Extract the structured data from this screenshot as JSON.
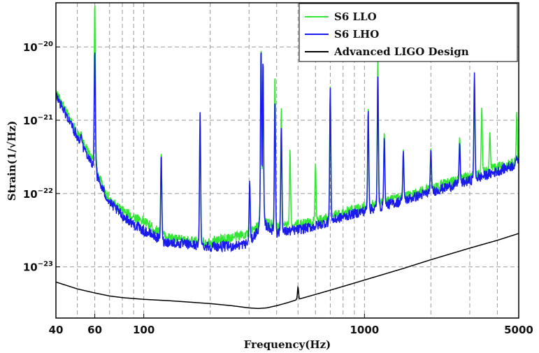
{
  "chart_data": {
    "type": "line",
    "x_scale": "log",
    "y_scale": "log",
    "xlim": [
      40,
      5000
    ],
    "ylim": [
      2e-24,
      4e-20
    ],
    "xlabel": "Frequency(Hz)",
    "ylabel": "Strain(1/√Hz)",
    "x_ticks": [
      40,
      60,
      100,
      1000,
      5000
    ],
    "x_tick_labels": [
      "40",
      "60",
      "100",
      "1000",
      "5000"
    ],
    "y_ticks": [
      1e-23,
      1e-22,
      1e-21,
      1e-20
    ],
    "y_tick_labels": [
      "10",
      "10",
      "10",
      "10"
    ],
    "y_tick_exponents": [
      "−23",
      "−22",
      "−21",
      "−20"
    ],
    "grid": true,
    "legend_position": "top-right",
    "colors": {
      "llo": "#33e633",
      "lho": "#1a1aee",
      "design": "#000000"
    },
    "series": [
      {
        "name": "S6 LLO",
        "color": "#33e633",
        "x": [
          40,
          45,
          50,
          55,
          58,
          60,
          62,
          65,
          70,
          80,
          90,
          100,
          110,
          120,
          130,
          150,
          180,
          200,
          250,
          300,
          330,
          345,
          360,
          400,
          500,
          600,
          700,
          800,
          1000,
          1500,
          2000,
          3000,
          4000,
          5000
        ],
        "y": [
          2.4e-21,
          1.2e-21,
          6.5e-22,
          4e-22,
          3e-22,
          2.6e-22,
          1.8e-22,
          1.3e-22,
          8e-23,
          5.8e-23,
          4.8e-23,
          4.2e-23,
          3.4e-23,
          2.8e-23,
          2.5e-23,
          2.3e-23,
          2.15e-23,
          2.2e-23,
          2.5e-23,
          2.9e-23,
          3.6e-23,
          5e-23,
          4e-23,
          3.5e-23,
          3.8e-23,
          4.2e-23,
          4.8e-23,
          5.5e-23,
          6.8e-23,
          9e-23,
          1.2e-22,
          1.7e-22,
          2.3e-22,
          2.7e-22
        ],
        "peaks": [
          {
            "f": 46,
            "a": 9e-22
          },
          {
            "f": 52,
            "a": 7e-22
          },
          {
            "f": 60,
            "a": 4.4e-20
          },
          {
            "f": 120,
            "a": 3.8e-22
          },
          {
            "f": 180,
            "a": 1.2e-21
          },
          {
            "f": 302,
            "a": 1.4e-22
          },
          {
            "f": 340,
            "a": 1.1e-20
          },
          {
            "f": 347,
            "a": 4e-21
          },
          {
            "f": 393,
            "a": 4.5e-21
          },
          {
            "f": 420,
            "a": 1.5e-21
          },
          {
            "f": 460,
            "a": 4e-22
          },
          {
            "f": 600,
            "a": 2.6e-22
          },
          {
            "f": 700,
            "a": 2.9e-21
          },
          {
            "f": 1040,
            "a": 1.5e-21
          },
          {
            "f": 1150,
            "a": 8.5e-21
          },
          {
            "f": 1230,
            "a": 7e-22
          },
          {
            "f": 1500,
            "a": 4e-22
          },
          {
            "f": 2000,
            "a": 4.2e-22
          },
          {
            "f": 2700,
            "a": 6e-22
          },
          {
            "f": 3150,
            "a": 2.4e-21
          },
          {
            "f": 3400,
            "a": 1.5e-21
          },
          {
            "f": 3700,
            "a": 7e-22
          },
          {
            "f": 4900,
            "a": 1.3e-21
          }
        ]
      },
      {
        "name": "S6 LHO",
        "color": "#1a1aee",
        "x": [
          40,
          45,
          50,
          55,
          58,
          60,
          62,
          65,
          70,
          80,
          90,
          100,
          110,
          120,
          130,
          150,
          180,
          200,
          250,
          300,
          330,
          345,
          360,
          400,
          500,
          600,
          700,
          800,
          1000,
          1500,
          2000,
          3000,
          4000,
          5000
        ],
        "y": [
          2.2e-21,
          1.1e-21,
          6e-22,
          3.6e-22,
          2.7e-22,
          2.2e-22,
          1.6e-22,
          1.15e-22,
          7.5e-23,
          5e-23,
          3.8e-23,
          3.1e-23,
          2.7e-23,
          2.3e-23,
          2.15e-23,
          2.05e-23,
          1.95e-23,
          1.9e-23,
          1.9e-23,
          2.1e-23,
          3.2e-23,
          4.5e-23,
          3.6e-23,
          2.9e-23,
          3.2e-23,
          3.6e-23,
          4.2e-23,
          4.8e-23,
          5.8e-23,
          8e-23,
          1.05e-22,
          1.5e-22,
          2e-22,
          2.6e-22
        ],
        "peaks": [
          {
            "f": 46,
            "a": 8e-22
          },
          {
            "f": 52,
            "a": 6.5e-22
          },
          {
            "f": 60,
            "a": 9.5e-21
          },
          {
            "f": 120,
            "a": 3.5e-22
          },
          {
            "f": 180,
            "a": 1.3e-21
          },
          {
            "f": 302,
            "a": 1.5e-22
          },
          {
            "f": 340,
            "a": 1.05e-20
          },
          {
            "f": 347,
            "a": 7e-21
          },
          {
            "f": 393,
            "a": 2e-21
          },
          {
            "f": 420,
            "a": 8e-22
          },
          {
            "f": 700,
            "a": 2.8e-21
          },
          {
            "f": 1040,
            "a": 1.4e-21
          },
          {
            "f": 1150,
            "a": 4e-21
          },
          {
            "f": 1230,
            "a": 6e-22
          },
          {
            "f": 1500,
            "a": 3.8e-22
          },
          {
            "f": 2000,
            "a": 4e-22
          },
          {
            "f": 2700,
            "a": 5e-22
          },
          {
            "f": 3150,
            "a": 4.5e-21
          },
          {
            "f": 4900,
            "a": 3.2e-22
          }
        ]
      },
      {
        "name": "Advanced LIGO Design",
        "color": "#000000",
        "x": [
          40,
          50,
          60,
          70,
          80,
          100,
          130,
          150,
          200,
          250,
          300,
          330,
          360,
          400,
          450,
          500,
          600,
          700,
          800,
          1000,
          1500,
          2000,
          3000,
          4000,
          5000
        ],
        "y": [
          6.2e-24,
          5e-24,
          4.4e-24,
          4e-24,
          3.8e-24,
          3.6e-24,
          3.45e-24,
          3.35e-24,
          3.15e-24,
          2.95e-24,
          2.75e-24,
          2.7e-24,
          2.75e-24,
          2.95e-24,
          3.25e-24,
          3.6e-24,
          4.2e-24,
          4.8e-24,
          5.4e-24,
          6.6e-24,
          9.5e-24,
          1.25e-23,
          1.8e-23,
          2.3e-23,
          2.85e-23
        ],
        "peaks": [
          {
            "f": 500,
            "a": 5.3e-24
          }
        ]
      }
    ]
  }
}
